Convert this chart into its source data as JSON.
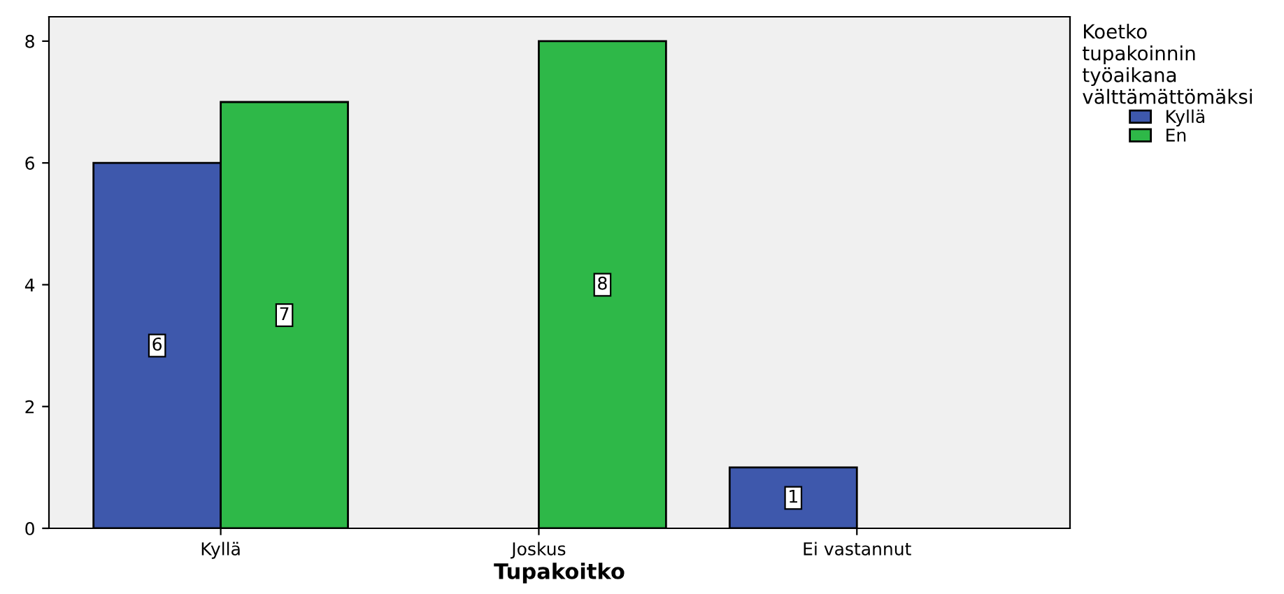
{
  "chart_data": {
    "type": "bar",
    "xlabel": "Tupakoitko",
    "legend_title": "Koetko tupakoinnin työaikana välttämättömäksi",
    "categories": [
      "Kyllä",
      "Joskus",
      "Ei vastannut"
    ],
    "series": [
      {
        "name": "Kyllä",
        "color": "#3e58ac",
        "values": [
          6,
          null,
          1
        ]
      },
      {
        "name": "En",
        "color": "#2eb848",
        "values": [
          7,
          8,
          null
        ]
      }
    ],
    "ylim": [
      0,
      8.4
    ],
    "yticks": [
      0,
      2,
      4,
      6,
      8
    ],
    "data_labels": true,
    "grid": false,
    "legend": "top right"
  }
}
